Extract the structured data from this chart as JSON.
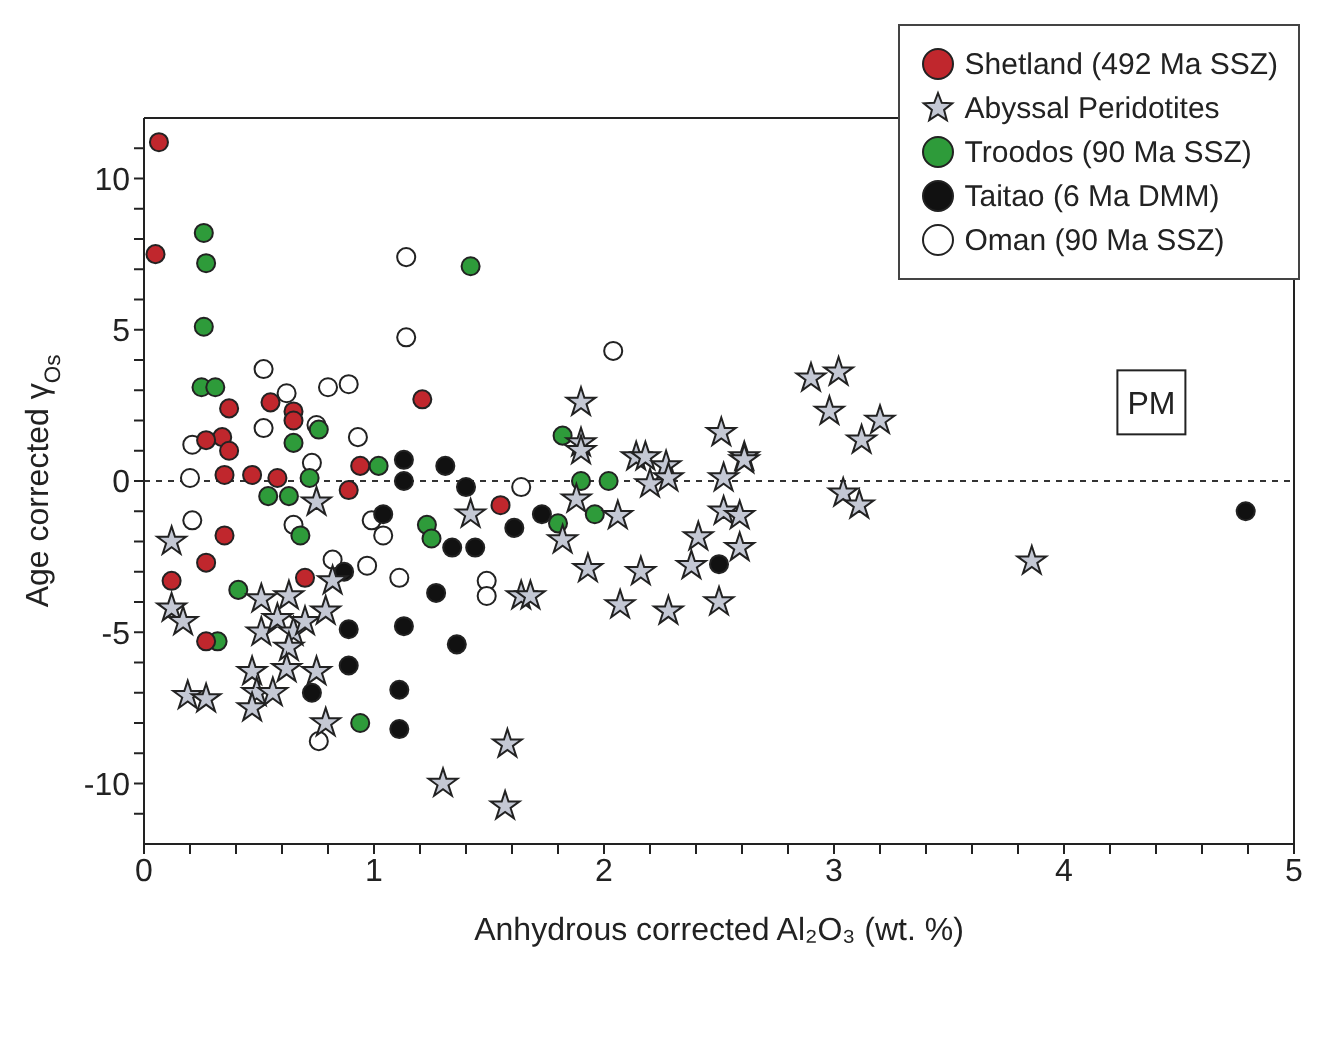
{
  "chart_data": {
    "type": "scatter",
    "xlabel": "Anhydrous corrected Al₂O₃ (wt. %)",
    "ylabel": "Age corrected γ$_{Os}$",
    "xlim": [
      0,
      5
    ],
    "ylim": [
      -12,
      12
    ],
    "xticks": [
      0,
      {
        "value": 0.2,
        "label": null
      },
      {
        "value": 0.4,
        "label": null
      },
      {
        "value": 0.6,
        "label": null
      },
      {
        "value": 0.8,
        "label": null
      },
      1,
      {
        "value": 1.2,
        "label": null
      },
      {
        "value": 1.4,
        "label": null
      },
      {
        "value": 1.6,
        "label": null
      },
      {
        "value": 1.8,
        "label": null
      },
      2,
      {
        "value": 2.2,
        "label": null
      },
      {
        "value": 2.4,
        "label": null
      },
      {
        "value": 2.6,
        "label": null
      },
      {
        "value": 2.8,
        "label": null
      },
      3,
      {
        "value": 3.2,
        "label": null
      },
      {
        "value": 3.4,
        "label": null
      },
      {
        "value": 3.6,
        "label": null
      },
      {
        "value": 3.8,
        "label": null
      },
      4,
      {
        "value": 4.2,
        "label": null
      },
      {
        "value": 4.4,
        "label": null
      },
      {
        "value": 4.6,
        "label": null
      },
      {
        "value": 4.8,
        "label": null
      },
      5
    ],
    "yticks": [
      {
        "value": -11,
        "label": null
      },
      -10,
      {
        "value": -9,
        "label": null
      },
      {
        "value": -8,
        "label": null
      },
      {
        "value": -7,
        "label": null
      },
      {
        "value": -6,
        "label": null
      },
      -5,
      {
        "value": -4,
        "label": null
      },
      {
        "value": -3,
        "label": null
      },
      {
        "value": -2,
        "label": null
      },
      {
        "value": -1,
        "label": null
      },
      0,
      {
        "value": 1,
        "label": null
      },
      {
        "value": 2,
        "label": null
      },
      {
        "value": 3,
        "label": null
      },
      {
        "value": 4,
        "label": null
      },
      5,
      {
        "value": 6,
        "label": null
      },
      {
        "value": 7,
        "label": null
      },
      {
        "value": 8,
        "label": null
      },
      {
        "value": 9,
        "label": null
      },
      10,
      {
        "value": 11,
        "label": null
      }
    ],
    "legend": "top right",
    "ref_lines": [
      {
        "axis": "y",
        "value": 0,
        "line_style": "dashed",
        "color": "#333333"
      }
    ],
    "annotations": [
      {
        "text": "PM",
        "x": 4.38,
        "y": 2.6
      }
    ],
    "series": [
      {
        "name": "Shetland (492 Ma SSZ)",
        "color": "#c0272d",
        "marker": "circle",
        "x": [
          0.065,
          0.05,
          1.21,
          0.37,
          0.55,
          0.65,
          0.65,
          0.34,
          0.27,
          0.37,
          0.35,
          0.47,
          0.58,
          0.94,
          0.89,
          1.55,
          0.35,
          0.27,
          0.12,
          0.7,
          0.27
        ],
        "values": [
          11.2,
          7.5,
          2.7,
          2.4,
          2.6,
          2.3,
          2.0,
          1.45,
          1.35,
          1.0,
          0.2,
          0.2,
          0.1,
          0.5,
          -0.3,
          -0.8,
          -1.8,
          -2.7,
          -3.3,
          -3.2,
          -5.3
        ]
      },
      {
        "name": "Abyssal Peridotites",
        "color": "#c4c8d4",
        "marker": "star",
        "x": [
          0.12,
          0.12,
          0.17,
          0.19,
          0.27,
          0.47,
          0.49,
          0.47,
          0.56,
          0.51,
          0.51,
          0.58,
          0.63,
          0.65,
          0.63,
          0.62,
          0.7,
          0.79,
          0.75,
          0.79,
          0.82,
          0.75,
          1.3,
          1.58,
          1.57,
          1.42,
          1.64,
          1.68,
          1.82,
          1.93,
          2.07,
          2.06,
          2.16,
          2.2,
          1.88,
          1.9,
          1.9,
          1.9,
          2.14,
          2.9,
          3.02,
          2.98,
          3.2,
          3.12,
          2.51,
          2.61,
          2.18,
          2.27,
          2.28,
          2.52,
          2.61,
          3.04,
          3.11,
          2.52,
          2.59,
          2.41,
          2.59,
          2.38,
          2.28,
          2.5,
          3.86
        ],
        "values": [
          -2.0,
          -4.2,
          -4.65,
          -7.1,
          -7.2,
          -6.3,
          -7.0,
          -7.5,
          -7.0,
          -3.9,
          -5.0,
          -4.55,
          -3.8,
          -5.0,
          -5.5,
          -6.2,
          -4.65,
          -4.3,
          -6.3,
          -8.0,
          -3.3,
          -0.7,
          -10.0,
          -8.7,
          -10.75,
          -1.1,
          -3.8,
          -3.8,
          -1.95,
          -2.9,
          -4.1,
          -1.15,
          -3.0,
          -0.1,
          -0.6,
          2.6,
          1.26,
          1.0,
          0.8,
          3.4,
          3.6,
          2.3,
          2.0,
          1.35,
          1.6,
          0.8,
          0.8,
          0.5,
          0.1,
          0.1,
          0.7,
          -0.4,
          -0.8,
          -1.0,
          -1.15,
          -1.85,
          -2.2,
          -2.8,
          -4.3,
          -4.0,
          -2.65
        ]
      },
      {
        "name": "Troodos (90 Ma SSZ)",
        "color": "#2e9b3a",
        "marker": "circle",
        "x": [
          0.26,
          0.27,
          0.26,
          1.42,
          0.25,
          0.31,
          0.65,
          0.76,
          1.82,
          0.54,
          0.63,
          0.72,
          0.68,
          0.41,
          0.32,
          0.94,
          1.23,
          1.25,
          1.8,
          1.9,
          2.02,
          1.96,
          1.02
        ],
        "values": [
          8.2,
          7.2,
          5.1,
          7.1,
          3.1,
          3.1,
          1.26,
          1.7,
          1.5,
          -0.5,
          -0.5,
          0.1,
          -1.8,
          -3.6,
          -5.3,
          -8.0,
          -1.45,
          -1.9,
          -1.4,
          0.0,
          0.0,
          -1.1,
          0.5
        ]
      },
      {
        "name": "Taitao (6 Ma DMM)",
        "color": "#111111",
        "marker": "circle",
        "x": [
          1.13,
          1.13,
          1.31,
          1.4,
          1.04,
          1.61,
          1.73,
          1.34,
          1.44,
          1.27,
          0.89,
          1.13,
          1.36,
          0.89,
          0.73,
          1.11,
          1.11,
          0.87,
          2.5,
          4.79
        ],
        "values": [
          0.7,
          0.0,
          0.5,
          -0.2,
          -1.1,
          -1.55,
          -1.1,
          -2.2,
          -2.2,
          -3.7,
          -4.9,
          -4.8,
          -5.4,
          -6.1,
          -7.0,
          -6.9,
          -8.2,
          -3.0,
          -2.75,
          -1.0
        ]
      },
      {
        "name": "Oman (90 Ma SSZ)",
        "color": "#ffffff",
        "marker": "circle",
        "x": [
          1.14,
          1.14,
          2.04,
          0.52,
          0.8,
          0.89,
          0.52,
          0.75,
          0.93,
          0.21,
          0.62,
          0.2,
          0.21,
          0.73,
          0.65,
          0.99,
          1.04,
          0.82,
          0.97,
          1.11,
          1.49,
          1.49,
          0.76,
          1.64
        ],
        "values": [
          7.4,
          4.75,
          4.3,
          3.7,
          3.1,
          3.2,
          1.75,
          1.85,
          1.45,
          1.2,
          2.9,
          0.1,
          -1.3,
          0.6,
          -1.45,
          -1.3,
          -1.8,
          -2.6,
          -2.8,
          -3.2,
          -3.3,
          -3.8,
          -8.6,
          -0.2
        ]
      }
    ]
  }
}
